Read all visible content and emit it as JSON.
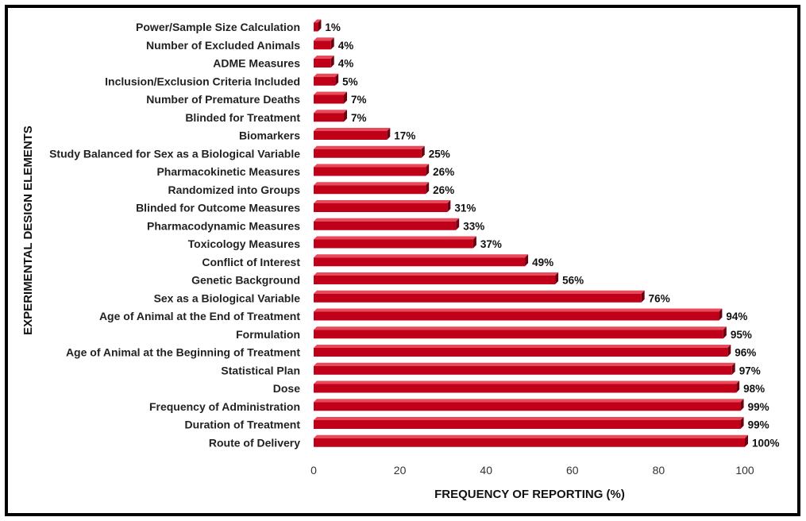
{
  "chart_data": {
    "type": "bar",
    "orientation": "horizontal",
    "bar_style": "3d",
    "bar_color": "#c00018",
    "bar_shade_color": "#6e0010",
    "bar_top_color": "#e84a5a",
    "xlabel": "FREQUENCY OF REPORTING (%)",
    "ylabel": "EXPERIMENTAL DESIGN ELEMENTS",
    "xlim": [
      0,
      100
    ],
    "x_ticks": [
      "0",
      "20",
      "40",
      "60",
      "80",
      "100"
    ],
    "grid": false,
    "legend": "none",
    "categories": [
      "Power/Sample Size Calculation",
      "Number of Excluded Animals",
      "ADME Measures",
      "Inclusion/Exclusion Criteria Included",
      "Number of Premature Deaths",
      "Blinded for Treatment",
      "Biomarkers",
      "Study Balanced for Sex as a Biological Variable",
      "Pharmacokinetic Measures",
      "Randomized into Groups",
      "Blinded for Outcome Measures",
      "Pharmacodynamic Measures",
      "Toxicology Measures",
      "Conflict of Interest",
      "Genetic Background",
      "Sex as a Biological Variable",
      "Age of Animal at the End of Treatment",
      "Formulation",
      "Age of Animal at the Beginning of Treatment",
      "Statistical Plan",
      "Dose",
      "Frequency of Administration",
      "Duration of Treatment",
      "Route of Delivery"
    ],
    "values": [
      1,
      4,
      4,
      5,
      7,
      7,
      17,
      25,
      26,
      26,
      31,
      33,
      37,
      49,
      56,
      76,
      94,
      95,
      96,
      97,
      98,
      99,
      99,
      100
    ],
    "data_labels": [
      "1%",
      "4%",
      "4%",
      "5%",
      "7%",
      "7%",
      "17%",
      "25%",
      "26%",
      "26%",
      "31%",
      "33%",
      "37%",
      "49%",
      "56%",
      "76%",
      "94%",
      "95%",
      "96%",
      "97%",
      "98%",
      "99%",
      "99%",
      "100%"
    ]
  }
}
